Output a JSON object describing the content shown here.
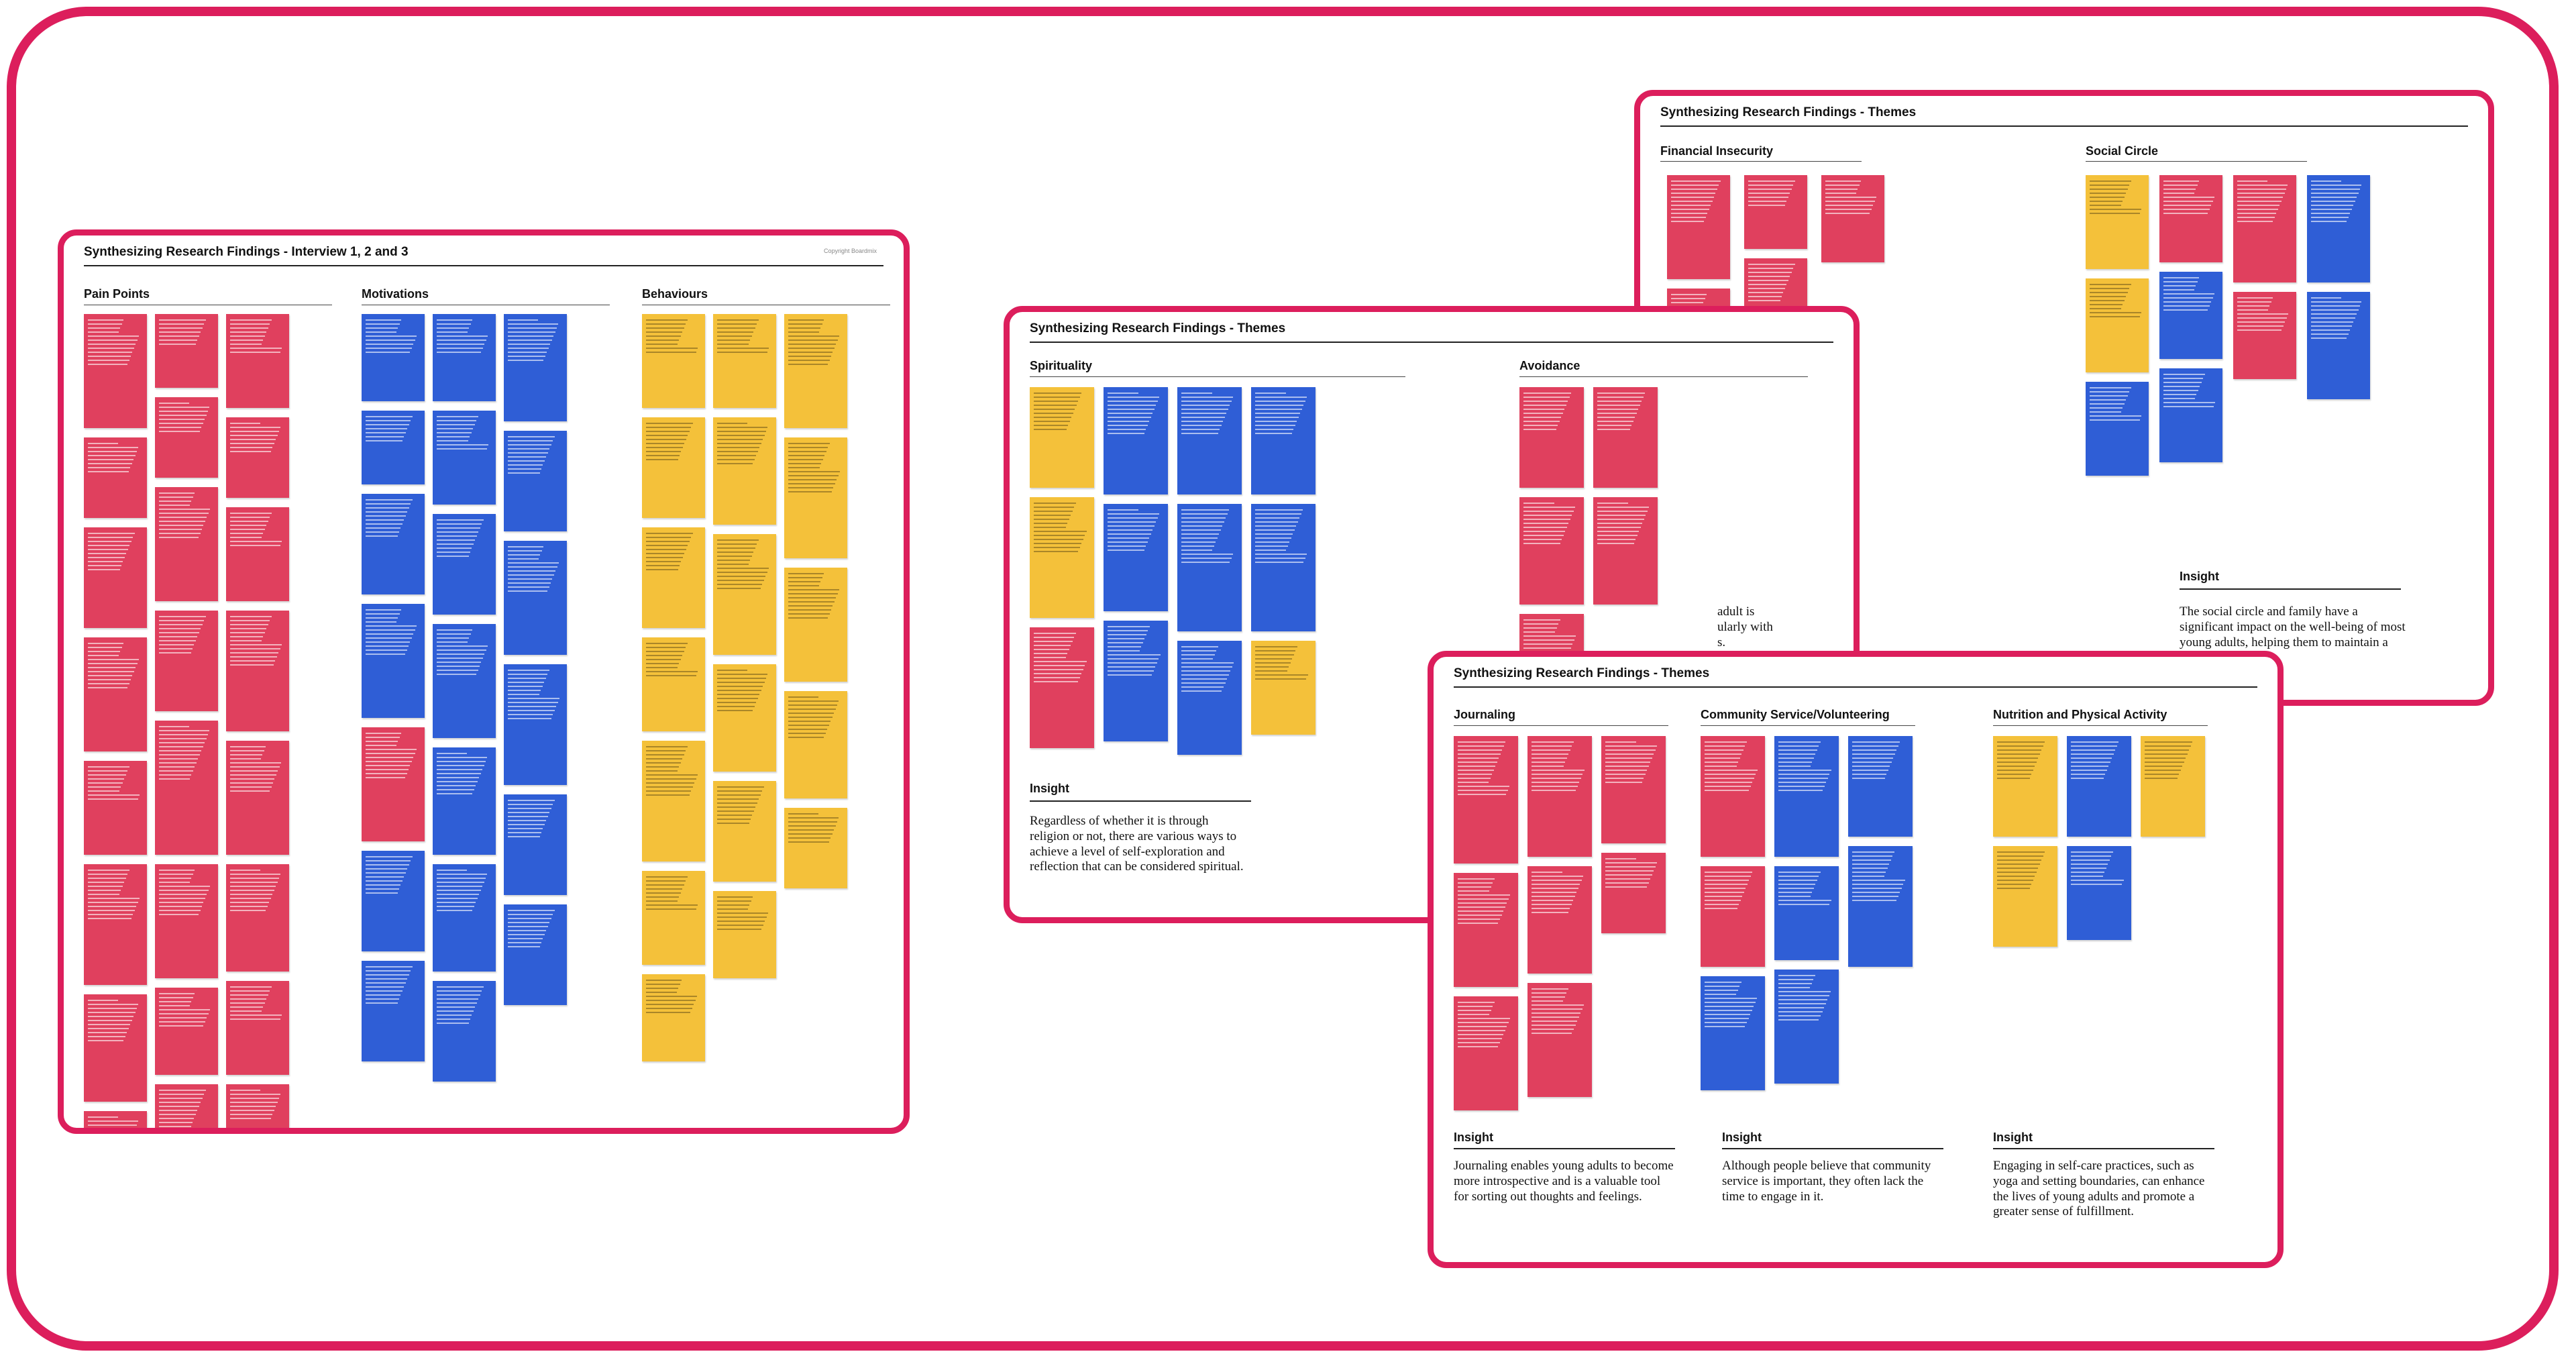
{
  "boards": {
    "interview": {
      "title": "Synthesizing Research Findings - Interview 1, 2 and 3",
      "copyright": "Copyright Boardmix",
      "sections": [
        "Pain Points",
        "Motivations",
        "Behaviours"
      ]
    },
    "themes_a": {
      "title": "Synthesizing Research Findings - Themes",
      "sections": [
        "Financial Insecurity",
        "Social Circle"
      ],
      "insight_label": "Insight",
      "insight_text": "The social circle and family have a significant impact on the well-being of most young adults, helping them to maintain a sense of"
    },
    "themes_b": {
      "title": "Synthesizing Research Findings - Themes",
      "sections": [
        "Spirituality",
        "Avoidance"
      ],
      "insight_label": "Insight",
      "insight_text": "Regardless of whether it is through religion or not, there are various ways to achieve a level of self-exploration and reflection that can be considered spiritual.",
      "partial_text": "adult is\nularly with\ns."
    },
    "themes_c": {
      "title": "Synthesizing Research Findings - Themes",
      "sections": [
        "Journaling",
        "Community Service/Volunteering",
        "Nutrition and Physical Activity"
      ],
      "insights": [
        {
          "label": "Insight",
          "text": "Journaling enables young adults to become more introspective and is a valuable tool for sorting out thoughts and feelings."
        },
        {
          "label": "Insight",
          "text": "Although people believe that community service is important, they often lack the time to engage in it."
        },
        {
          "label": "Insight",
          "text": "Engaging in self-care practices, such as yoga and setting boundaries, can enhance the lives of young adults and promote a greater sense of fulfillment."
        }
      ]
    }
  },
  "colors": {
    "frame": "#dc1e5c",
    "red_note": "#e0405e",
    "blue_note": "#2f5ed6",
    "yellow_note": "#f4c13a"
  }
}
